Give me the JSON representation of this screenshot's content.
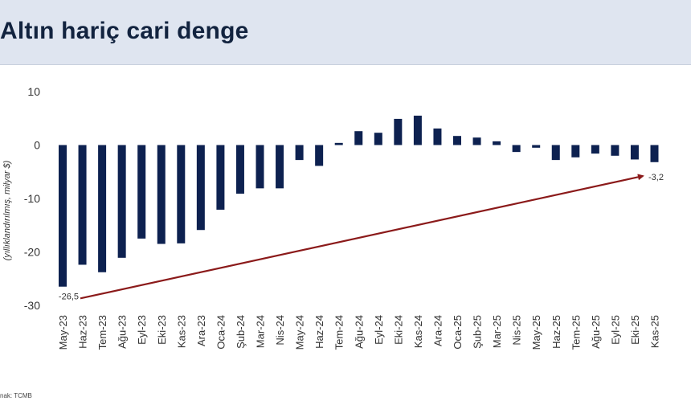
{
  "title": "Altın hariç cari denge",
  "source": "nak: TCMB",
  "chart_data": {
    "type": "bar",
    "title": "Altın hariç cari denge",
    "ylabel": "(yıllıklandırılmış, milyar $)",
    "xlabel": "",
    "ylim": [
      -30,
      10
    ],
    "yticks": [
      10,
      0,
      -10,
      -20,
      -30
    ],
    "bar_color": "#0d2150",
    "trend_color": "#8b1a1a",
    "categories": [
      "May-23",
      "Haz-23",
      "Tem-23",
      "Ağu-23",
      "Eyl-23",
      "Eki-23",
      "Kas-23",
      "Ara-23",
      "Oca-24",
      "Şub-24",
      "Mar-24",
      "Nis-24",
      "May-24",
      "Haz-24",
      "Tem-24",
      "Ağu-24",
      "Eyl-24",
      "Eki-24",
      "Kas-24",
      "Ara-24",
      "Oca-25",
      "Şub-25",
      "Mar-25",
      "Nis-25",
      "May-25",
      "Haz-25",
      "Tem-25",
      "Ağu-25",
      "Eyl-25",
      "Eki-25",
      "Kas-25"
    ],
    "values": [
      -26.5,
      -22.4,
      -23.8,
      -21.1,
      -17.5,
      -18.5,
      -18.4,
      -15.9,
      -12.1,
      -9.1,
      -8.1,
      -8.1,
      -2.8,
      -3.9,
      0.4,
      2.6,
      2.3,
      4.9,
      5.5,
      3.1,
      1.7,
      1.4,
      0.7,
      -1.3,
      -0.5,
      -2.8,
      -2.3,
      -1.6,
      -2.0,
      -2.7,
      -3.2
    ],
    "annotations": [
      {
        "category": "May-23",
        "label": "-26,5"
      },
      {
        "category": "Kas-25",
        "label": "-3,2"
      }
    ],
    "trend_arrow": {
      "from": {
        "category": "May-23",
        "value": -28.7
      },
      "to": {
        "category": "Eki-25",
        "value": -5.8
      }
    }
  }
}
